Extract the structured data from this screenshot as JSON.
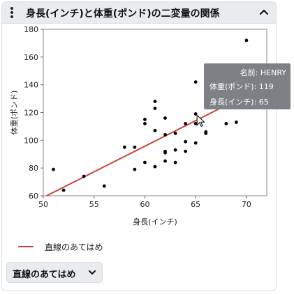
{
  "header": {
    "title": "身長(インチ)と体重(ポンド)の二変量の関係"
  },
  "legend": {
    "fit_label": "直線のあてはめ",
    "fit_color": "#c8453c"
  },
  "fit_menu": {
    "label": "直線のあてはめ"
  },
  "tooltip": {
    "name_label": "名前",
    "name_value": "HENRY",
    "y_label": "体重(ポンド)",
    "y_value": "119",
    "x_label": "身長(インチ)",
    "x_value": "65"
  },
  "chart_data": {
    "type": "scatter",
    "xlabel": "身長(インチ)",
    "ylabel": "体重(ポンド)",
    "xlim": [
      50,
      72
    ],
    "ylim": [
      60,
      180
    ],
    "xticks": [
      50,
      55,
      60,
      65,
      70
    ],
    "yticks": [
      60,
      80,
      100,
      120,
      140,
      160,
      180
    ],
    "grid": false,
    "point_color": "#000000",
    "points": [
      [
        51,
        79
      ],
      [
        52,
        64
      ],
      [
        54,
        74
      ],
      [
        56,
        67
      ],
      [
        58,
        95
      ],
      [
        59,
        95
      ],
      [
        59,
        79
      ],
      [
        60,
        115
      ],
      [
        60,
        112
      ],
      [
        60,
        84
      ],
      [
        61,
        128
      ],
      [
        61,
        123
      ],
      [
        61,
        107
      ],
      [
        61,
        81
      ],
      [
        62,
        116
      ],
      [
        62,
        104
      ],
      [
        62,
        92
      ],
      [
        62,
        91
      ],
      [
        62,
        85
      ],
      [
        63,
        105
      ],
      [
        63,
        93
      ],
      [
        63,
        84
      ],
      [
        64,
        112
      ],
      [
        64,
        99
      ],
      [
        64,
        92
      ],
      [
        65,
        142
      ],
      [
        65,
        119
      ],
      [
        65,
        112
      ],
      [
        65,
        98
      ],
      [
        66,
        145
      ],
      [
        66,
        106
      ],
      [
        66,
        105
      ],
      [
        66,
        128
      ],
      [
        68,
        112
      ],
      [
        69,
        113
      ],
      [
        70,
        172
      ]
    ],
    "fit_line": {
      "slope": 3.69,
      "intercept": -125.7
    },
    "highlighted_point": [
      65,
      119
    ]
  }
}
